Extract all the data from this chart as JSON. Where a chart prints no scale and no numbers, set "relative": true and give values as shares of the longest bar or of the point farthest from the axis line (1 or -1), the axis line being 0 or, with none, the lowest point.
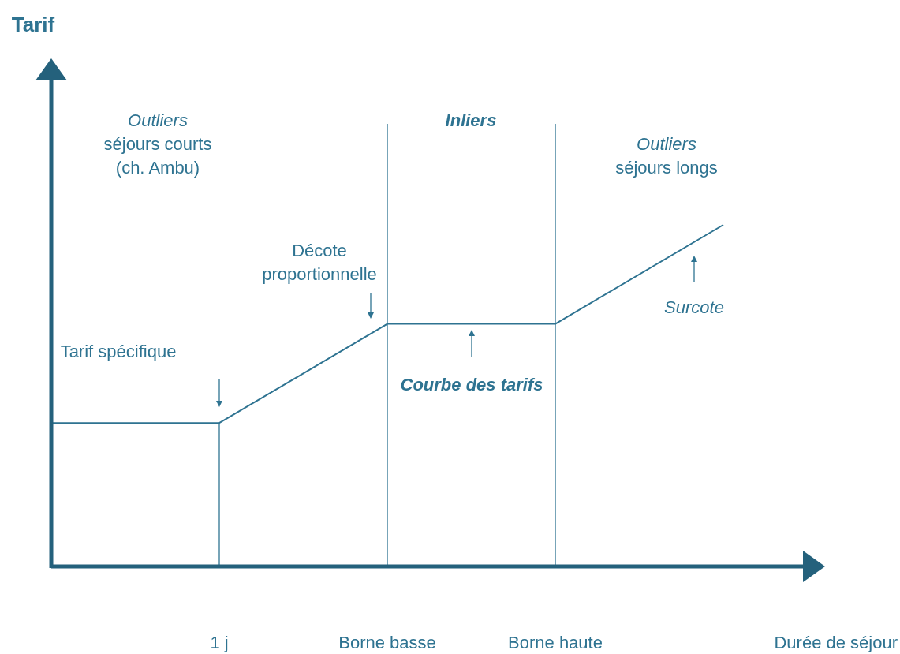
{
  "chart_data": {
    "type": "line",
    "relative": true,
    "xlabel": "Durée de séjour",
    "categories": [
      null,
      "1 j",
      "Borne basse",
      "Borne haute",
      null
    ],
    "tick_labels": "x",
    "line_style": "solid",
    "series": [
      {
        "color": "#2e7391",
        "values": [
          0.42,
          0.42,
          0.71,
          0.71,
          1
        ]
      }
    ],
    "ref_lines": [
      {
        "axis": "x",
        "value": "1 j"
      },
      {
        "axis": "x",
        "value": "Borne basse"
      },
      {
        "axis": "x",
        "value": "Borne haute"
      }
    ],
    "annotations": [
      "Outliers\nséjours courts\n(ch. Ambu)",
      "Inliers",
      "Outliers\nséjours longs",
      "Tarif spécifique",
      "Décote\nproportionnelle",
      "Courbe des tarifs",
      "Surcote",
      "Tarif"
    ]
  }
}
